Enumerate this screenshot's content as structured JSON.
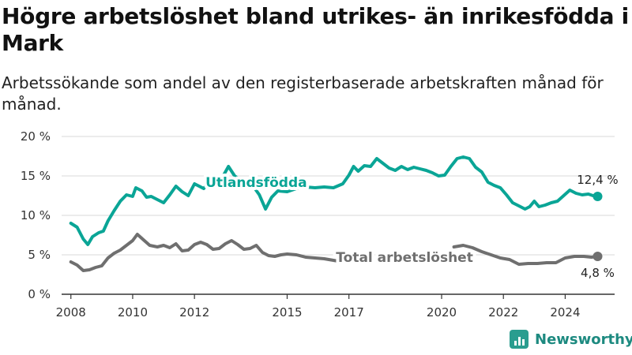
{
  "header": {
    "title": "Högre arbetslöshet bland utrikes- än inrikesfödda i Mark",
    "subtitle": "Arbetssökande som andel av den registerbaserade arbetskraften månad för månad."
  },
  "brand": {
    "name": "Newsworthy",
    "icon": "bar-chart-logo-icon"
  },
  "colors": {
    "foreign_born": "#0aa596",
    "total": "#6f6f6f",
    "grid": "#d9d9d9",
    "axis": "#333333"
  },
  "chart_data": {
    "type": "line",
    "ylim": [
      0,
      20
    ],
    "xlim": [
      2007.7,
      2025.6
    ],
    "y_ticks": [
      0,
      5,
      10,
      15,
      20
    ],
    "y_tick_labels": [
      "0 %",
      "5 %",
      "10 %",
      "15 %",
      "20 %"
    ],
    "x_ticks": [
      2008,
      2010,
      2012,
      2015,
      2017,
      2020,
      2022,
      2024
    ],
    "x_tick_labels": [
      "2008",
      "2010",
      "2012",
      "2015",
      "2017",
      "2020",
      "2022",
      "2024"
    ],
    "grid": true,
    "series": [
      {
        "name": "Utlandsfödda",
        "end_label": "12,4 %",
        "points": [
          [
            2008.0,
            9.0
          ],
          [
            2008.2,
            8.5
          ],
          [
            2008.4,
            7.0
          ],
          [
            2008.55,
            6.3
          ],
          [
            2008.7,
            7.3
          ],
          [
            2008.9,
            7.8
          ],
          [
            2009.05,
            8.0
          ],
          [
            2009.2,
            9.3
          ],
          [
            2009.4,
            10.6
          ],
          [
            2009.6,
            11.8
          ],
          [
            2009.8,
            12.6
          ],
          [
            2010.0,
            12.4
          ],
          [
            2010.1,
            13.5
          ],
          [
            2010.3,
            13.1
          ],
          [
            2010.45,
            12.3
          ],
          [
            2010.6,
            12.4
          ],
          [
            2010.8,
            12.0
          ],
          [
            2011.0,
            11.6
          ],
          [
            2011.2,
            12.6
          ],
          [
            2011.4,
            13.7
          ],
          [
            2011.6,
            13.0
          ],
          [
            2011.8,
            12.5
          ],
          [
            2012.0,
            14.0
          ],
          [
            2012.3,
            13.4
          ],
          [
            2012.5,
            14.4
          ],
          [
            2012.7,
            14.0
          ],
          [
            2012.9,
            14.8
          ],
          [
            2013.1,
            16.2
          ],
          [
            2013.3,
            15.0
          ],
          [
            2013.5,
            14.5
          ],
          [
            2013.7,
            14.2
          ],
          [
            2013.9,
            13.7
          ],
          [
            2014.1,
            12.6
          ],
          [
            2014.3,
            10.8
          ],
          [
            2014.5,
            12.3
          ],
          [
            2014.7,
            13.1
          ],
          [
            2015.0,
            13.0
          ],
          [
            2015.3,
            13.4
          ],
          [
            2015.6,
            13.6
          ],
          [
            2015.9,
            13.5
          ],
          [
            2016.2,
            13.6
          ],
          [
            2016.5,
            13.5
          ],
          [
            2016.8,
            14.0
          ],
          [
            2017.0,
            15.1
          ],
          [
            2017.15,
            16.2
          ],
          [
            2017.3,
            15.6
          ],
          [
            2017.5,
            16.3
          ],
          [
            2017.7,
            16.2
          ],
          [
            2017.9,
            17.2
          ],
          [
            2018.1,
            16.6
          ],
          [
            2018.3,
            16.0
          ],
          [
            2018.5,
            15.7
          ],
          [
            2018.7,
            16.2
          ],
          [
            2018.9,
            15.8
          ],
          [
            2019.1,
            16.1
          ],
          [
            2019.3,
            15.9
          ],
          [
            2019.5,
            15.7
          ],
          [
            2019.7,
            15.4
          ],
          [
            2019.9,
            15.0
          ],
          [
            2020.1,
            15.1
          ],
          [
            2020.3,
            16.2
          ],
          [
            2020.5,
            17.2
          ],
          [
            2020.7,
            17.4
          ],
          [
            2020.9,
            17.2
          ],
          [
            2021.1,
            16.1
          ],
          [
            2021.3,
            15.5
          ],
          [
            2021.5,
            14.2
          ],
          [
            2021.7,
            13.8
          ],
          [
            2021.9,
            13.5
          ],
          [
            2022.1,
            12.6
          ],
          [
            2022.3,
            11.6
          ],
          [
            2022.5,
            11.2
          ],
          [
            2022.7,
            10.8
          ],
          [
            2022.85,
            11.1
          ],
          [
            2023.0,
            11.8
          ],
          [
            2023.15,
            11.1
          ],
          [
            2023.35,
            11.3
          ],
          [
            2023.55,
            11.6
          ],
          [
            2023.75,
            11.8
          ],
          [
            2023.95,
            12.5
          ],
          [
            2024.15,
            13.2
          ],
          [
            2024.35,
            12.8
          ],
          [
            2024.55,
            12.6
          ],
          [
            2024.75,
            12.7
          ],
          [
            2024.9,
            12.5
          ],
          [
            2025.05,
            12.4
          ]
        ]
      },
      {
        "name": "Total arbetslöshet",
        "end_label": "4,8 %",
        "points": [
          [
            2008.0,
            4.1
          ],
          [
            2008.2,
            3.7
          ],
          [
            2008.4,
            3.0
          ],
          [
            2008.6,
            3.1
          ],
          [
            2008.8,
            3.4
          ],
          [
            2009.0,
            3.6
          ],
          [
            2009.2,
            4.6
          ],
          [
            2009.4,
            5.2
          ],
          [
            2009.6,
            5.6
          ],
          [
            2009.8,
            6.2
          ],
          [
            2010.0,
            6.8
          ],
          [
            2010.15,
            7.6
          ],
          [
            2010.35,
            6.9
          ],
          [
            2010.55,
            6.2
          ],
          [
            2010.8,
            6.0
          ],
          [
            2011.0,
            6.2
          ],
          [
            2011.2,
            5.9
          ],
          [
            2011.4,
            6.4
          ],
          [
            2011.6,
            5.5
          ],
          [
            2011.8,
            5.6
          ],
          [
            2012.0,
            6.3
          ],
          [
            2012.2,
            6.6
          ],
          [
            2012.4,
            6.3
          ],
          [
            2012.6,
            5.7
          ],
          [
            2012.8,
            5.8
          ],
          [
            2013.0,
            6.4
          ],
          [
            2013.2,
            6.8
          ],
          [
            2013.4,
            6.3
          ],
          [
            2013.6,
            5.7
          ],
          [
            2013.8,
            5.8
          ],
          [
            2014.0,
            6.2
          ],
          [
            2014.2,
            5.3
          ],
          [
            2014.4,
            4.9
          ],
          [
            2014.6,
            4.8
          ],
          [
            2014.8,
            5.0
          ],
          [
            2015.0,
            5.1
          ],
          [
            2015.3,
            5.0
          ],
          [
            2015.6,
            4.7
          ],
          [
            2015.9,
            4.6
          ],
          [
            2016.2,
            4.5
          ],
          [
            2016.5,
            4.3
          ],
          [
            2016.8,
            4.1
          ],
          [
            2017.0,
            4.1
          ],
          [
            2020.4,
            6.0
          ],
          [
            2020.7,
            6.2
          ],
          [
            2021.0,
            5.9
          ],
          [
            2021.3,
            5.4
          ],
          [
            2021.6,
            5.0
          ],
          [
            2021.9,
            4.6
          ],
          [
            2022.2,
            4.4
          ],
          [
            2022.5,
            3.8
          ],
          [
            2022.8,
            3.9
          ],
          [
            2023.1,
            3.9
          ],
          [
            2023.4,
            4.0
          ],
          [
            2023.7,
            4.0
          ],
          [
            2024.0,
            4.6
          ],
          [
            2024.3,
            4.8
          ],
          [
            2024.6,
            4.8
          ],
          [
            2024.85,
            4.7
          ],
          [
            2025.05,
            4.8
          ]
        ]
      }
    ]
  }
}
